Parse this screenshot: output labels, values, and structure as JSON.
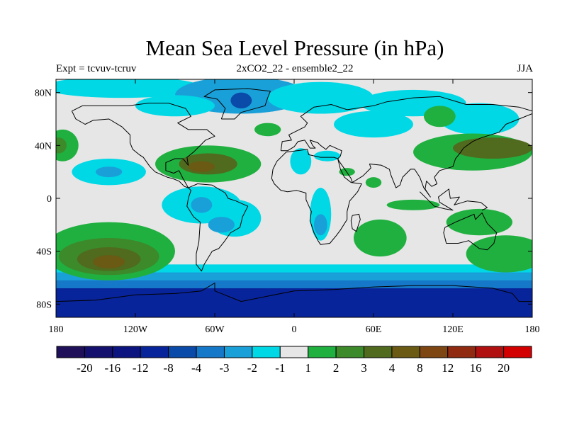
{
  "title": "Mean Sea Level Pressure (in hPa)",
  "left_label": "Expt = tcvuv-tcruv",
  "center_label": "2xCO2_22 - ensemble2_22",
  "right_label": "JJA",
  "lat_ticks": [
    {
      "value": 80,
      "label": "80N"
    },
    {
      "value": 40,
      "label": "40N"
    },
    {
      "value": 0,
      "label": "0"
    },
    {
      "value": -40,
      "label": "40S"
    },
    {
      "value": -80,
      "label": "80S"
    }
  ],
  "lon_ticks": [
    {
      "value": -180,
      "label": "180"
    },
    {
      "value": -120,
      "label": "120W"
    },
    {
      "value": -60,
      "label": "60W"
    },
    {
      "value": 0,
      "label": "0"
    },
    {
      "value": 60,
      "label": "60E"
    },
    {
      "value": 120,
      "label": "120E"
    },
    {
      "value": 180,
      "label": "180"
    }
  ],
  "colorbar": {
    "colors": [
      "#20105a",
      "#14106e",
      "#0c1480",
      "#08249a",
      "#0a4aa8",
      "#1678c8",
      "#1aa0d8",
      "#00d8e6",
      "#e6e6e6",
      "#20b040",
      "#3c8a2a",
      "#506a1e",
      "#6a5a14",
      "#7e4612",
      "#902a10",
      "#b01010",
      "#d20000"
    ],
    "labels": [
      "-20",
      "-16",
      "-12",
      "-8",
      "-4",
      "-3",
      "-2",
      "-1",
      "1",
      "2",
      "3",
      "4",
      "8",
      "12",
      "16",
      "20"
    ]
  },
  "background_color": "#e6e6e6",
  "map_blobs": [
    {
      "lon": -130,
      "lat": 84,
      "rx": 60,
      "ry": 8,
      "color_index": 7
    },
    {
      "lon": -40,
      "lat": 78,
      "rx": 50,
      "ry": 14,
      "color_index": 6
    },
    {
      "lon": -40,
      "lat": 74,
      "rx": 8,
      "ry": 6,
      "color_index": 4
    },
    {
      "lon": 20,
      "lat": 76,
      "rx": 40,
      "ry": 12,
      "color_index": 7
    },
    {
      "lon": 90,
      "lat": 72,
      "rx": 40,
      "ry": 10,
      "color_index": 7
    },
    {
      "lon": -90,
      "lat": 70,
      "rx": 30,
      "ry": 8,
      "color_index": 7
    },
    {
      "lon": 140,
      "lat": 60,
      "rx": 30,
      "ry": 12,
      "color_index": 7
    },
    {
      "lon": 60,
      "lat": 56,
      "rx": 30,
      "ry": 10,
      "color_index": 7
    },
    {
      "lon": -20,
      "lat": 52,
      "rx": 10,
      "ry": 5,
      "color_index": 9
    },
    {
      "lon": -175,
      "lat": 40,
      "rx": 12,
      "ry": 12,
      "color_index": 9
    },
    {
      "lon": -178,
      "lat": 40,
      "rx": 6,
      "ry": 6,
      "color_index": 10
    },
    {
      "lon": -140,
      "lat": 20,
      "rx": 28,
      "ry": 10,
      "color_index": 7
    },
    {
      "lon": -140,
      "lat": 20,
      "rx": 10,
      "ry": 4,
      "color_index": 6
    },
    {
      "lon": -65,
      "lat": 26,
      "rx": 40,
      "ry": 14,
      "color_index": 9
    },
    {
      "lon": -65,
      "lat": 26,
      "rx": 22,
      "ry": 8,
      "color_index": 11
    },
    {
      "lon": -70,
      "lat": 24,
      "rx": 10,
      "ry": 4,
      "color_index": 12
    },
    {
      "lon": 5,
      "lat": 28,
      "rx": 8,
      "ry": 10,
      "color_index": 7
    },
    {
      "lon": 25,
      "lat": 32,
      "rx": 10,
      "ry": 4,
      "color_index": 7
    },
    {
      "lon": 40,
      "lat": 20,
      "rx": 6,
      "ry": 3,
      "color_index": 9
    },
    {
      "lon": 60,
      "lat": 12,
      "rx": 6,
      "ry": 4,
      "color_index": 9
    },
    {
      "lon": 135,
      "lat": 35,
      "rx": 45,
      "ry": 14,
      "color_index": 9
    },
    {
      "lon": 150,
      "lat": 38,
      "rx": 30,
      "ry": 8,
      "color_index": 11
    },
    {
      "lon": 110,
      "lat": 62,
      "rx": 12,
      "ry": 8,
      "color_index": 9
    },
    {
      "lon": -70,
      "lat": -5,
      "rx": 30,
      "ry": 14,
      "color_index": 7
    },
    {
      "lon": -70,
      "lat": -5,
      "rx": 8,
      "ry": 6,
      "color_index": 6
    },
    {
      "lon": -45,
      "lat": -15,
      "rx": 20,
      "ry": 14,
      "color_index": 7
    },
    {
      "lon": -55,
      "lat": -20,
      "rx": 10,
      "ry": 6,
      "color_index": 6
    },
    {
      "lon": 20,
      "lat": -12,
      "rx": 8,
      "ry": 20,
      "color_index": 7
    },
    {
      "lon": 20,
      "lat": -20,
      "rx": 5,
      "ry": 8,
      "color_index": 6
    },
    {
      "lon": 90,
      "lat": -5,
      "rx": 20,
      "ry": 4,
      "color_index": 9
    },
    {
      "lon": 65,
      "lat": -30,
      "rx": 20,
      "ry": 14,
      "color_index": 9
    },
    {
      "lon": 140,
      "lat": -18,
      "rx": 25,
      "ry": 10,
      "color_index": 9
    },
    {
      "lon": 160,
      "lat": -42,
      "rx": 30,
      "ry": 14,
      "color_index": 9
    },
    {
      "lon": -140,
      "lat": -40,
      "rx": 50,
      "ry": 22,
      "color_index": 9
    },
    {
      "lon": -140,
      "lat": -44,
      "rx": 38,
      "ry": 14,
      "color_index": 10
    },
    {
      "lon": -140,
      "lat": -46,
      "rx": 24,
      "ry": 9,
      "color_index": 11
    },
    {
      "lon": -140,
      "lat": -48,
      "rx": 12,
      "ry": 5,
      "color_index": 12
    }
  ],
  "map_bands": [
    {
      "lat_top": -50,
      "color_index": 7
    },
    {
      "lat_top": -56,
      "color_index": 6
    },
    {
      "lat_top": -62,
      "color_index": 5
    },
    {
      "lat_top": -68,
      "color_index": 3
    }
  ]
}
